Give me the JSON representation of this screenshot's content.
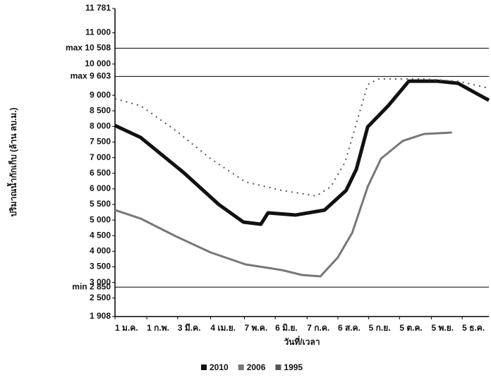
{
  "chart_data": {
    "type": "line",
    "y_label": "ปริมาณน้ำกักเก็บ (ล้าน ลบ.ม.)",
    "x_label": "วันที่/เวลา",
    "xlim": [
      1,
      365
    ],
    "xticks": [
      {
        "value": 1,
        "label": "1 ม.ค."
      },
      {
        "value": 32,
        "label": "1 ก.พ."
      },
      {
        "value": 62,
        "label": "3 มี.ค."
      },
      {
        "value": 94,
        "label": "4 เม.ย."
      },
      {
        "value": 127,
        "label": "7 พ.ค."
      },
      {
        "value": 157,
        "label": "6 มิ.ย."
      },
      {
        "value": 188,
        "label": "7 ก.ค."
      },
      {
        "value": 218,
        "label": "6 ส.ค."
      },
      {
        "value": 248,
        "label": "5 ก.ย."
      },
      {
        "value": 278,
        "label": "5 ต.ค."
      },
      {
        "value": 309,
        "label": "5 พ.ย."
      },
      {
        "value": 339,
        "label": "5 ธ.ค."
      }
    ],
    "ylim": [
      1908,
      11781
    ],
    "yticks": [
      {
        "value": 1908,
        "label": "1 908"
      },
      {
        "value": 2500,
        "label": "2 500"
      },
      {
        "value": 3000,
        "label": "3 000"
      },
      {
        "value": 3500,
        "label": "3 500"
      },
      {
        "value": 4000,
        "label": "4 000"
      },
      {
        "value": 4500,
        "label": "4 500"
      },
      {
        "value": 5000,
        "label": "5 000"
      },
      {
        "value": 5500,
        "label": "5 500"
      },
      {
        "value": 6000,
        "label": "6 000"
      },
      {
        "value": 6500,
        "label": "6 500"
      },
      {
        "value": 7000,
        "label": "7 000"
      },
      {
        "value": 7500,
        "label": "7 500"
      },
      {
        "value": 8000,
        "label": "8 000"
      },
      {
        "value": 8500,
        "label": "8 500"
      },
      {
        "value": 9000,
        "label": "9 000"
      },
      {
        "value": 10000,
        "label": "10 000"
      },
      {
        "value": 11000,
        "label": "11 000"
      },
      {
        "value": 11781,
        "label": "11 781"
      }
    ],
    "reference_lines": [
      {
        "value": 10508,
        "label": "max 10 508"
      },
      {
        "value": 9603,
        "label": "max 9 603"
      },
      {
        "value": 2850,
        "label": "min 2 850"
      }
    ],
    "series": [
      {
        "name": "2010",
        "color": "#111111",
        "style": "solid",
        "width": 5,
        "x": [
          1,
          26,
          68,
          102,
          126,
          143,
          150,
          177,
          205,
          226,
          236,
          247,
          267,
          287,
          315,
          335,
          356,
          365
        ],
        "values": [
          8030,
          7646,
          6517,
          5500,
          4935,
          4868,
          5230,
          5162,
          5320,
          5950,
          6630,
          7985,
          8663,
          9450,
          9450,
          9383,
          9000,
          8840
        ]
      },
      {
        "name": "2006",
        "color": "#777777",
        "style": "solid",
        "width": 3,
        "x": [
          1,
          26,
          60,
          94,
          128,
          163,
          183,
          201,
          218,
          232,
          247,
          260,
          281,
          302,
          329
        ],
        "values": [
          5320,
          5048,
          4484,
          3964,
          3580,
          3400,
          3241,
          3196,
          3806,
          4597,
          6065,
          6969,
          7534,
          7760,
          7805
        ]
      },
      {
        "name": "1995",
        "color": "#555555",
        "style": "dotted",
        "width": 2,
        "x": [
          1,
          26,
          60,
          94,
          128,
          163,
          197,
          211,
          225,
          247,
          257,
          274,
          301,
          335,
          365
        ],
        "values": [
          8890,
          8663,
          7873,
          6969,
          6223,
          5952,
          5772,
          6065,
          6856,
          9341,
          9522,
          9522,
          9522,
          9450,
          9228
        ]
      }
    ]
  }
}
